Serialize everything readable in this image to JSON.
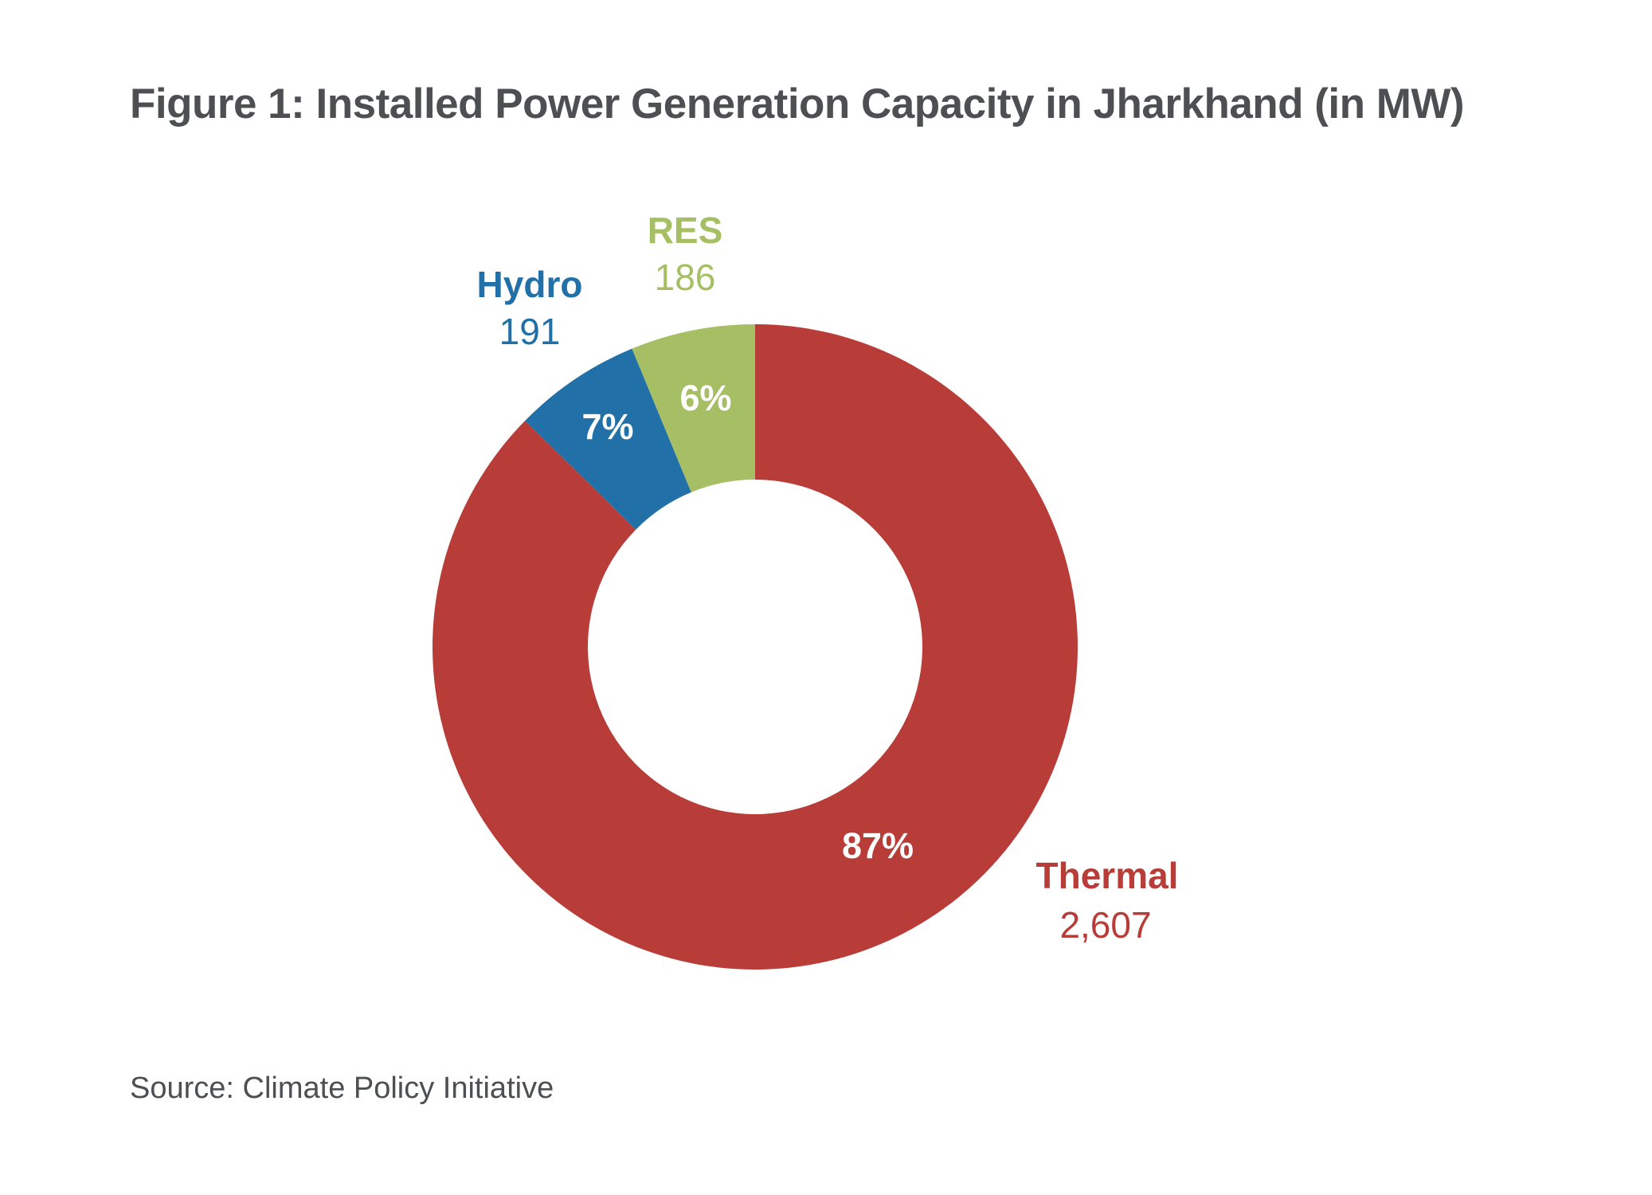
{
  "title": "Figure 1: Installed Power Generation Capacity in Jharkhand (in MW)",
  "source": "Source: Climate Policy Initiative",
  "chart_data": {
    "type": "pie",
    "variant": "donut",
    "title": "Figure 1: Installed Power Generation Capacity in Jharkhand (in MW)",
    "unit": "MW",
    "start_angle_deg": 0,
    "direction": "clockwise",
    "slices": [
      {
        "label": "Thermal",
        "value": 2607,
        "value_label": "2,607",
        "percent": 87,
        "percent_label": "87%",
        "color": "#b83c38"
      },
      {
        "label": "Hydro",
        "value": 191,
        "value_label": "191",
        "percent": 7,
        "percent_label": "7%",
        "color": "#2270a8"
      },
      {
        "label": "RES",
        "value": 186,
        "value_label": "186",
        "percent": 6,
        "percent_label": "6%",
        "color": "#a6bf64"
      }
    ]
  }
}
